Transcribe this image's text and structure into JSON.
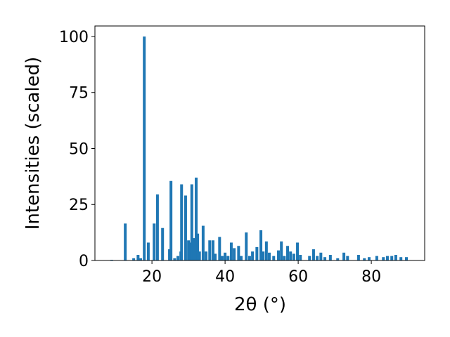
{
  "chart_data": {
    "type": "bar",
    "x_label": "2θ (°)",
    "y_label": "Intensities (scaled)",
    "color": "#1f77b4",
    "x": [
      9.0,
      12.7,
      15.0,
      16.2,
      16.9,
      17.9,
      19.0,
      20.6,
      21.5,
      22.9,
      24.8,
      25.2,
      26.2,
      27.1,
      27.9,
      28.1,
      29.2,
      30.0,
      30.4,
      30.9,
      31.5,
      32.1,
      32.5,
      33.0,
      34.0,
      34.8,
      35.8,
      36.7,
      37.3,
      38.5,
      39.2,
      40.0,
      40.8,
      41.7,
      42.5,
      43.7,
      44.4,
      45.8,
      46.7,
      47.5,
      48.7,
      49.8,
      50.4,
      51.3,
      52.1,
      53.3,
      54.6,
      55.4,
      56.2,
      57.1,
      57.9,
      58.8,
      59.8,
      60.6,
      63.1,
      64.2,
      65.2,
      66.2,
      67.3,
      68.8,
      70.8,
      72.5,
      73.5,
      76.5,
      78.1,
      79.4,
      81.5,
      83.3,
      84.4,
      85.6,
      86.7,
      88.1,
      89.6
    ],
    "values": [
      0.3,
      16.5,
      1,
      2.5,
      1,
      100,
      8,
      16.5,
      29.5,
      14.5,
      5,
      35.5,
      1,
      2,
      4,
      34,
      29,
      9,
      8,
      34,
      10,
      37,
      12,
      4,
      15.5,
      4,
      9,
      9,
      3,
      10.5,
      2,
      3.5,
      2,
      8,
      5.5,
      6.5,
      2,
      12.5,
      2,
      4,
      6,
      13.5,
      4,
      8.5,
      3.5,
      2,
      4.5,
      8.5,
      2,
      6.5,
      4,
      3,
      8,
      2.5,
      2,
      5,
      2,
      3.5,
      1.5,
      2.5,
      1,
      3.5,
      2,
      2.5,
      1,
      1.5,
      2,
      1.5,
      2,
      2,
      2.5,
      1.5,
      1.5
    ],
    "xlim": [
      4.4,
      94.6
    ],
    "ylim": [
      0,
      104.7
    ],
    "xticks": [
      20,
      40,
      60,
      80
    ],
    "yticks": [
      0,
      25,
      50,
      75,
      100
    ]
  }
}
